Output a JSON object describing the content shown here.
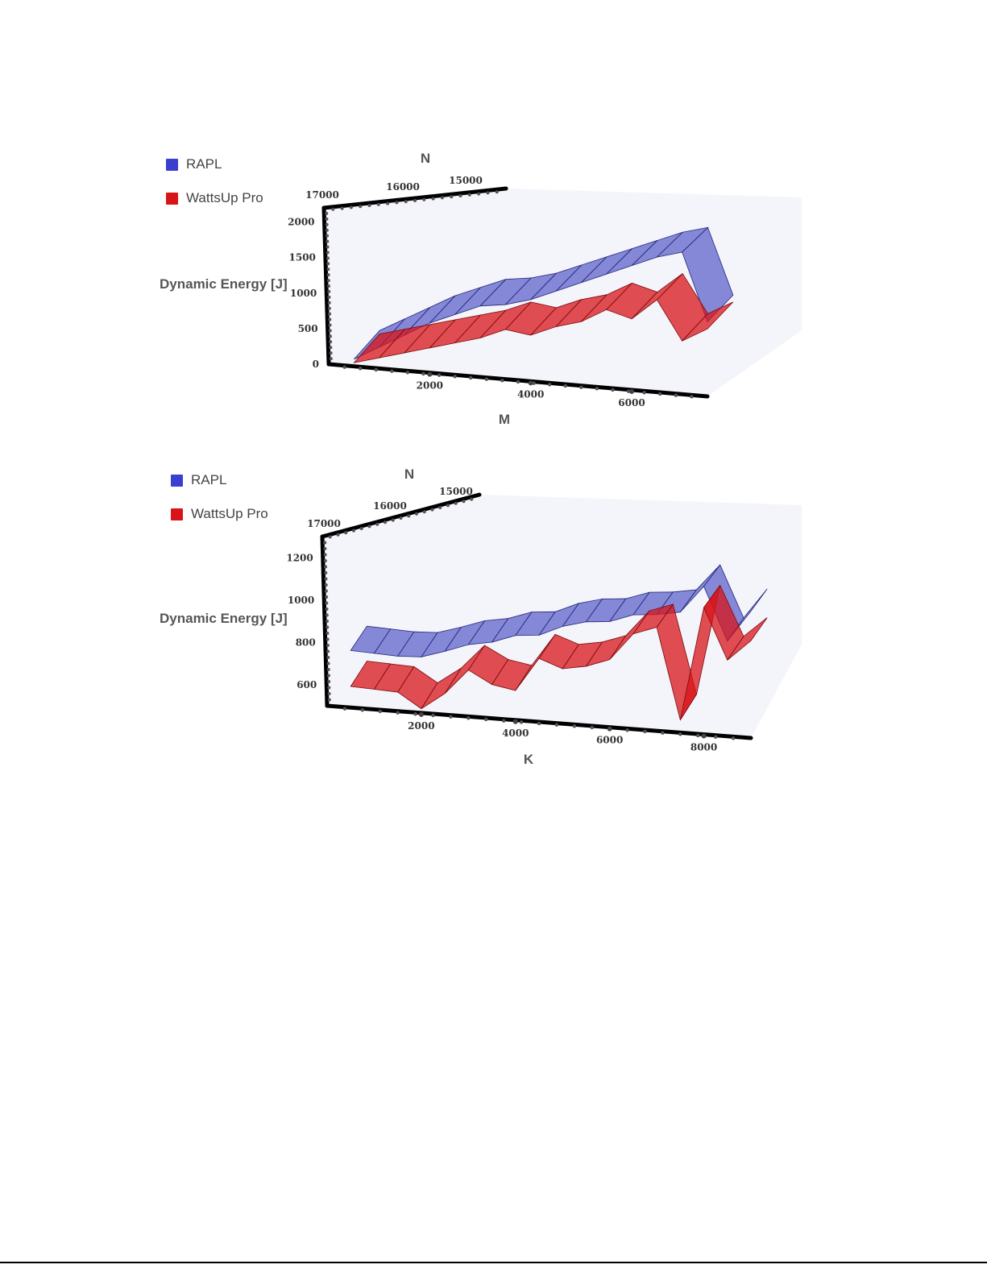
{
  "colors": {
    "rapl_fill": "#3a3fa0",
    "rapl_line": "#2a2e7a",
    "watts_fill": "#d81418",
    "watts_line": "#8a0a0c",
    "axis": "#000000",
    "box_bg": "#f4f4fb"
  },
  "chart_data": [
    {
      "type": "surface3d",
      "legend": [
        "RAPL",
        "WattsUp Pro"
      ],
      "xlabel": "M",
      "ylabel": "N",
      "zlabel": "Dynamic Energy [J]",
      "x_ticks": [
        "2000",
        "4000",
        "6000"
      ],
      "y_ticks": [
        "17000",
        "16000",
        "15000"
      ],
      "z_ticks": [
        "0",
        "500",
        "1000",
        "1500",
        "2000"
      ],
      "xlim": [
        0,
        7500
      ],
      "zlim": [
        0,
        2200
      ],
      "series": [
        {
          "name": "RAPL",
          "x": [
            500,
            1000,
            1500,
            2000,
            2500,
            3000,
            3500,
            4000,
            4500,
            5000,
            5500,
            6000,
            6500,
            7000,
            7500
          ],
          "y": [
            100,
            300,
            500,
            700,
            850,
            1000,
            1050,
            1150,
            1300,
            1450,
            1600,
            1750,
            1900,
            2000,
            1050
          ]
        },
        {
          "name": "WattsUp Pro",
          "x": [
            500,
            1000,
            1500,
            2000,
            2500,
            3000,
            3500,
            4000,
            4500,
            5000,
            5500,
            6000,
            6500,
            7000,
            7500
          ],
          "y": [
            50,
            150,
            250,
            350,
            450,
            550,
            700,
            650,
            800,
            900,
            1100,
            1000,
            1300,
            750,
            950
          ]
        }
      ]
    },
    {
      "type": "surface3d",
      "legend": [
        "RAPL",
        "WattsUp Pro"
      ],
      "xlabel": "K",
      "ylabel": "N",
      "zlabel": "Dynamic Energy [J]",
      "x_ticks": [
        "2000",
        "4000",
        "6000",
        "8000"
      ],
      "y_ticks": [
        "17000",
        "16000",
        "15000"
      ],
      "z_ticks": [
        "600",
        "800",
        "1000",
        "1200"
      ],
      "xlim": [
        0,
        9000
      ],
      "zlim": [
        500,
        1300
      ],
      "series": [
        {
          "name": "RAPL",
          "x": [
            500,
            1000,
            1500,
            2000,
            2500,
            3000,
            3500,
            4000,
            4500,
            5000,
            5500,
            6000,
            6500,
            7000,
            7500,
            8000,
            8500,
            9000
          ],
          "y": [
            770,
            765,
            760,
            765,
            800,
            840,
            860,
            900,
            910,
            960,
            990,
            1000,
            1040,
            1050,
            1070,
            1200,
            950,
            1100
          ]
        },
        {
          "name": "WattsUp Pro",
          "x": [
            500,
            1000,
            1500,
            2000,
            2500,
            3000,
            3500,
            4000,
            4500,
            5000,
            5500,
            6000,
            6500,
            7000,
            7500,
            8000,
            8500,
            9000
          ],
          "y": [
            600,
            595,
            590,
            520,
            600,
            720,
            660,
            640,
            800,
            760,
            780,
            820,
            950,
            990,
            560,
            1100,
            860,
            960
          ]
        }
      ]
    }
  ]
}
